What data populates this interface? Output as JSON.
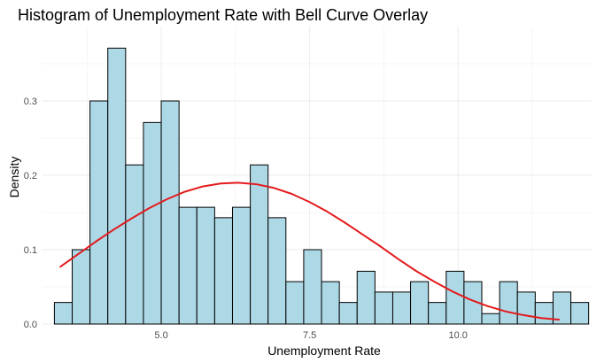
{
  "chart_data": {
    "type": "bar",
    "title": "Histogram of Unemployment Rate with Bell Curve Overlay",
    "xlabel": "Unemployment Rate",
    "ylabel": "Density",
    "xlim": [
      3.0,
      12.25
    ],
    "ylim": [
      0,
      0.4
    ],
    "x_ticks": [
      {
        "value": 5.0,
        "label": "5.0"
      },
      {
        "value": 7.5,
        "label": "7.5"
      },
      {
        "value": 10.0,
        "label": "10.0"
      }
    ],
    "y_ticks": [
      {
        "value": 0.0,
        "label": "0.0"
      },
      {
        "value": 0.1,
        "label": "0.1"
      },
      {
        "value": 0.2,
        "label": "0.2"
      },
      {
        "value": 0.3,
        "label": "0.3"
      }
    ],
    "grid": true,
    "histogram": {
      "bin_start": 3.2,
      "bin_width": 0.3,
      "fill_color": "#add8e6",
      "edge_color": "#000000",
      "density": [
        0.029,
        0.1,
        0.3,
        0.371,
        0.214,
        0.271,
        0.3,
        0.157,
        0.157,
        0.143,
        0.157,
        0.214,
        0.143,
        0.057,
        0.1,
        0.057,
        0.029,
        0.071,
        0.043,
        0.043,
        0.057,
        0.029,
        0.071,
        0.057,
        0.014,
        0.057,
        0.043,
        0.029,
        0.043,
        0.029
      ]
    },
    "bell_curve": {
      "type": "line",
      "color": "#e41a1c",
      "x": [
        3.3,
        3.6,
        3.9,
        4.2,
        4.5,
        4.8,
        5.1,
        5.4,
        5.7,
        6.0,
        6.3,
        6.6,
        6.9,
        7.2,
        7.5,
        7.8,
        8.1,
        8.4,
        8.7,
        9.0,
        9.3,
        9.6,
        9.9,
        10.2,
        10.5,
        10.8,
        11.1,
        11.4,
        11.7
      ],
      "y": [
        0.077,
        0.094,
        0.111,
        0.127,
        0.142,
        0.156,
        0.168,
        0.178,
        0.185,
        0.189,
        0.19,
        0.188,
        0.183,
        0.175,
        0.164,
        0.151,
        0.136,
        0.12,
        0.104,
        0.087,
        0.071,
        0.057,
        0.044,
        0.033,
        0.024,
        0.017,
        0.012,
        0.008,
        0.006
      ]
    }
  }
}
